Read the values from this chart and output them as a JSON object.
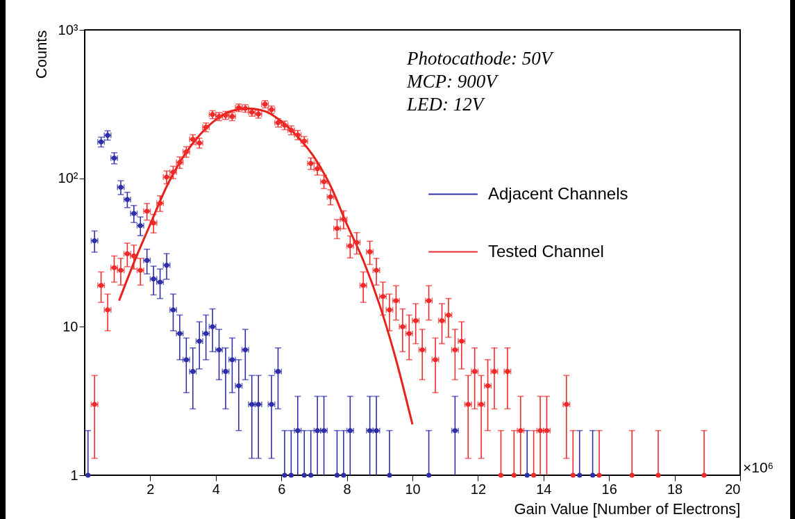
{
  "chart_data": {
    "type": "scatter",
    "xlabel": "Gain Value [Number of Electrons]",
    "ylabel": "Counts",
    "annotations": [
      "Photocathode: 50V",
      "MCP: 900V",
      "LED: 12V",
      "×10⁶"
    ],
    "xlim": [
      0,
      20
    ],
    "xticks": [
      2,
      4,
      6,
      8,
      10,
      12,
      14,
      16,
      18,
      20
    ],
    "ylim": [
      1,
      1000
    ],
    "yticks": [
      1,
      10,
      {
        "value": 100,
        "label": "10²"
      },
      {
        "value": 1000,
        "label": "10³"
      }
    ],
    "log": true,
    "grid": false,
    "legend": "right",
    "marker": "circle",
    "series": [
      {
        "name": "Adjacent Channels",
        "color": "#2e2ea8",
        "x": [
          0.1,
          0.3,
          0.5,
          0.7,
          0.9,
          1.1,
          1.3,
          1.5,
          1.7,
          1.9,
          2.1,
          2.3,
          2.5,
          2.7,
          2.9,
          3.1,
          3.3,
          3.5,
          3.7,
          3.9,
          4.1,
          4.3,
          4.5,
          4.7,
          4.9,
          5.1,
          5.3,
          5.7,
          5.9,
          6.1,
          6.3,
          6.5,
          6.7,
          6.9,
          7.1,
          7.3,
          7.7,
          7.9,
          8.1,
          8.7,
          8.9,
          9.3,
          10.5,
          11.3,
          13.5,
          15.1,
          15.5
        ],
        "values": [
          1,
          38,
          176,
          195,
          137,
          87,
          72,
          58,
          48,
          28,
          21,
          20,
          26,
          13,
          9,
          6,
          5,
          8,
          9,
          10,
          7,
          5,
          6,
          4,
          7,
          3,
          3,
          3,
          5,
          1,
          1,
          2,
          1,
          1,
          2,
          2,
          1,
          1,
          2,
          2,
          2,
          1,
          1,
          2,
          1,
          1,
          1
        ],
        "errors": [
          [
            1,
            2
          ],
          6.2,
          13.3,
          14,
          11.7,
          9.3,
          8.5,
          7.6,
          6.9,
          5.3,
          4.6,
          4.5,
          5.1,
          3.6,
          3,
          2.4,
          2.2,
          2.8,
          3,
          3.2,
          2.6,
          2.2,
          2.4,
          2,
          2.6,
          1.7,
          1.7,
          1.7,
          2.2,
          [
            1,
            2
          ],
          [
            1,
            2
          ],
          [
            1,
            3.4
          ],
          [
            1,
            2
          ],
          [
            1,
            2
          ],
          [
            1,
            3.4
          ],
          [
            1,
            3.4
          ],
          [
            1,
            2
          ],
          [
            1,
            2
          ],
          [
            1,
            3.4
          ],
          [
            1,
            3.4
          ],
          [
            1,
            3.4
          ],
          [
            1,
            2
          ],
          [
            1,
            2
          ],
          [
            1,
            3.4
          ],
          [
            1,
            2
          ],
          [
            1,
            2
          ],
          [
            1,
            2
          ]
        ],
        "xerrors": [
          null,
          0.1,
          0.1,
          0.1,
          0.1,
          0.1,
          0.1,
          0.1,
          0.1,
          0.1,
          0.1,
          0.1,
          0.1,
          0.1,
          0.1,
          0.1,
          0.1,
          0.1,
          0.1,
          0.1,
          0.1,
          0.1,
          0.1,
          0.1,
          0.1,
          0.1,
          0.1,
          0.1,
          0.1,
          null,
          null,
          0.1,
          null,
          null,
          0.1,
          0.1,
          null,
          null,
          0.1,
          0.1,
          0.1,
          null,
          null,
          0.1,
          null,
          null,
          null
        ]
      },
      {
        "name": "Tested Channel",
        "color": "#ee2a2a",
        "x": [
          0.3,
          0.5,
          0.7,
          0.9,
          1.1,
          1.3,
          1.5,
          1.7,
          1.9,
          2.1,
          2.3,
          2.5,
          2.7,
          2.9,
          3.1,
          3.3,
          3.5,
          3.7,
          3.9,
          4.1,
          4.3,
          4.5,
          4.7,
          4.9,
          5.1,
          5.3,
          5.5,
          5.7,
          5.9,
          6.1,
          6.3,
          6.5,
          6.7,
          6.9,
          7.1,
          7.3,
          7.5,
          7.7,
          7.9,
          8.1,
          8.3,
          8.5,
          8.7,
          8.9,
          9.1,
          9.3,
          9.5,
          9.7,
          9.9,
          10.1,
          10.3,
          10.5,
          10.7,
          10.9,
          11.1,
          11.3,
          11.5,
          11.7,
          11.9,
          12.1,
          12.3,
          12.5,
          12.7,
          12.9,
          13.1,
          13.3,
          13.7,
          13.9,
          14.1,
          14.7,
          14.9,
          15.7,
          16.7,
          17.5,
          18.9
        ],
        "values": [
          3,
          19,
          13,
          25,
          24,
          31,
          30,
          24,
          60,
          50,
          68,
          102,
          110,
          128,
          151,
          183,
          173,
          221,
          269,
          261,
          266,
          261,
          299,
          296,
          279,
          271,
          316,
          290,
          237,
          228,
          211,
          196,
          178,
          126,
          116,
          95,
          75,
          46,
          53,
          35,
          37,
          19,
          32,
          24,
          16,
          13,
          15,
          10,
          9,
          11,
          7,
          15,
          6,
          11,
          12,
          7,
          8,
          3,
          5,
          3,
          4,
          5,
          1,
          5,
          1,
          2,
          1,
          2,
          2,
          3,
          1,
          1,
          1,
          1,
          1
        ],
        "errors": [
          1.7,
          4.4,
          3.6,
          5,
          4.9,
          5.6,
          5.5,
          4.9,
          7.7,
          7.1,
          8.2,
          10.1,
          10.5,
          11.3,
          12.3,
          13.5,
          13.2,
          14.9,
          16.4,
          16.2,
          16.3,
          16.2,
          17.3,
          17.2,
          16.7,
          16.5,
          17.8,
          17,
          15.4,
          15.1,
          14.5,
          14,
          13.3,
          11.2,
          10.8,
          9.7,
          8.7,
          6.8,
          7.3,
          5.9,
          6.1,
          4.4,
          5.7,
          4.9,
          4,
          3.6,
          3.9,
          3.2,
          3,
          3.3,
          2.6,
          3.9,
          2.4,
          3.3,
          3.5,
          2.6,
          2.8,
          1.7,
          2.2,
          1.7,
          2,
          2.2,
          [
            1,
            2
          ],
          2.2,
          [
            1,
            2
          ],
          [
            1,
            3.4
          ],
          [
            1,
            2
          ],
          [
            1,
            3.4
          ],
          [
            1,
            3.4
          ],
          1.7,
          [
            1,
            2
          ],
          [
            1,
            2
          ],
          [
            1,
            2
          ],
          [
            1,
            2
          ],
          [
            1,
            2
          ]
        ],
        "xerrors": [
          0.1,
          0.1,
          0.1,
          0.1,
          0.1,
          0.1,
          0.1,
          0.1,
          0.1,
          0.1,
          0.1,
          0.1,
          0.1,
          0.1,
          0.1,
          0.1,
          0.1,
          0.1,
          0.1,
          0.1,
          0.1,
          0.1,
          0.1,
          0.1,
          0.1,
          0.1,
          0.1,
          0.1,
          0.1,
          0.1,
          0.1,
          0.1,
          0.1,
          0.1,
          0.1,
          0.1,
          0.1,
          0.1,
          0.1,
          0.1,
          0.1,
          0.1,
          0.1,
          0.1,
          0.1,
          0.1,
          0.1,
          0.1,
          0.1,
          0.1,
          0.1,
          0.1,
          0.1,
          0.1,
          0.1,
          0.1,
          0.1,
          0.1,
          0.1,
          0.1,
          0.1,
          0.1,
          null,
          0.1,
          null,
          0.1,
          null,
          0.1,
          0.1,
          0.1,
          null,
          null,
          null,
          null,
          null
        ]
      },
      {
        "type": "line",
        "marker": "none",
        "color": "#e8221b",
        "x": [
          1.05,
          1.5,
          2,
          2.5,
          3,
          3.5,
          4,
          4.5,
          5,
          5.5,
          6,
          6.5,
          7,
          7.5,
          8,
          8.5,
          9,
          9.5,
          10
        ],
        "values": [
          15,
          27,
          49,
          88,
          139,
          195,
          248,
          285,
          295,
          283,
          242,
          190,
          139,
          89,
          49,
          28,
          14,
          6,
          2.2
        ]
      }
    ]
  }
}
